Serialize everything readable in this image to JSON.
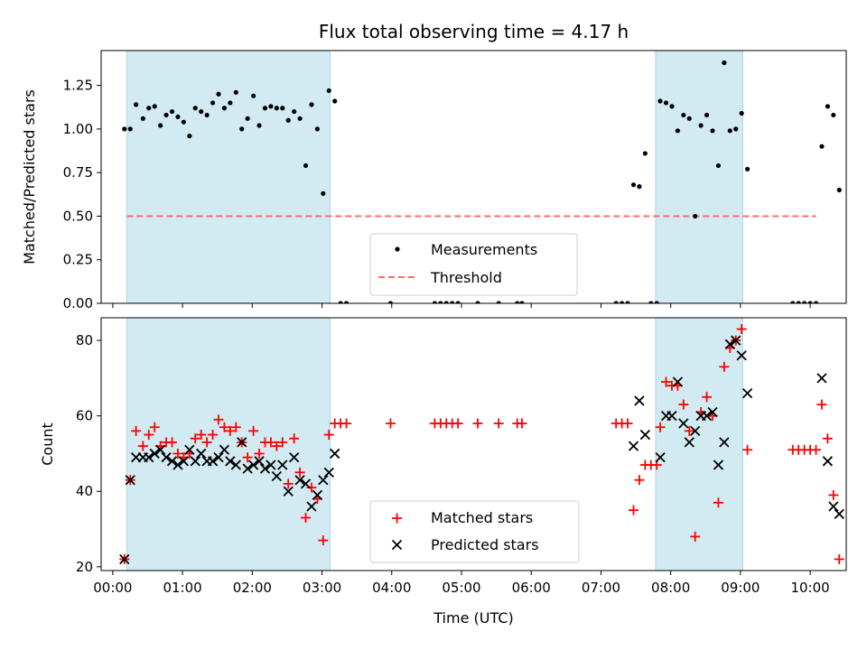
{
  "chart_data": [
    {
      "type": "scatter",
      "title": "Flux total observing time = 4.17 h",
      "ylabel": "Matched/Predicted stars",
      "xlabel": "",
      "ylim": [
        0,
        1.45
      ],
      "yticks": [
        "0.00",
        "0.25",
        "0.50",
        "0.75",
        "1.00",
        "1.25"
      ],
      "legend_position": "lower-center",
      "threshold": 0.5,
      "threshold_color": "#ff6b6b",
      "shaded_intervals": [
        [
          "00:12",
          "03:07"
        ],
        [
          "07:47",
          "09:02"
        ]
      ],
      "shade_color": "#add8e6",
      "series": [
        {
          "name": "Measurements",
          "color": "#000000",
          "marker": "dot",
          "points": [
            [
              "00:10",
              1.0
            ],
            [
              "00:15",
              1.0
            ],
            [
              "00:20",
              1.14
            ],
            [
              "00:26",
              1.06
            ],
            [
              "00:31",
              1.12
            ],
            [
              "00:36",
              1.13
            ],
            [
              "00:41",
              1.02
            ],
            [
              "00:46",
              1.08
            ],
            [
              "00:51",
              1.1
            ],
            [
              "00:56",
              1.07
            ],
            [
              "01:01",
              1.04
            ],
            [
              "01:06",
              0.96
            ],
            [
              "01:11",
              1.12
            ],
            [
              "01:16",
              1.1
            ],
            [
              "01:21",
              1.08
            ],
            [
              "01:26",
              1.15
            ],
            [
              "01:31",
              1.2
            ],
            [
              "01:36",
              1.12
            ],
            [
              "01:41",
              1.15
            ],
            [
              "01:46",
              1.21
            ],
            [
              "01:51",
              1.0
            ],
            [
              "01:56",
              1.06
            ],
            [
              "02:01",
              1.19
            ],
            [
              "02:06",
              1.02
            ],
            [
              "02:11",
              1.12
            ],
            [
              "02:16",
              1.13
            ],
            [
              "02:21",
              1.12
            ],
            [
              "02:26",
              1.12
            ],
            [
              "02:31",
              1.05
            ],
            [
              "02:36",
              1.1
            ],
            [
              "02:41",
              1.06
            ],
            [
              "02:46",
              0.79
            ],
            [
              "02:51",
              1.14
            ],
            [
              "02:56",
              1.0
            ],
            [
              "03:01",
              0.63
            ],
            [
              "03:06",
              1.22
            ],
            [
              "03:11",
              1.16
            ],
            [
              "03:16",
              0.0
            ],
            [
              "03:21",
              0.0
            ],
            [
              "03:59",
              0.0
            ],
            [
              "04:37",
              0.0
            ],
            [
              "04:42",
              0.0
            ],
            [
              "04:47",
              0.0
            ],
            [
              "04:52",
              0.0
            ],
            [
              "04:57",
              0.0
            ],
            [
              "05:14",
              0.0
            ],
            [
              "05:32",
              0.0
            ],
            [
              "05:48",
              0.0
            ],
            [
              "05:52",
              0.0
            ],
            [
              "07:13",
              0.0
            ],
            [
              "07:18",
              0.0
            ],
            [
              "07:23",
              0.0
            ],
            [
              "07:28",
              0.68
            ],
            [
              "07:33",
              0.67
            ],
            [
              "07:38",
              0.86
            ],
            [
              "07:43",
              0.0
            ],
            [
              "07:48",
              0.0
            ],
            [
              "07:51",
              1.16
            ],
            [
              "07:56",
              1.15
            ],
            [
              "08:01",
              1.13
            ],
            [
              "08:06",
              0.99
            ],
            [
              "08:11",
              1.08
            ],
            [
              "08:16",
              1.06
            ],
            [
              "08:21",
              0.5
            ],
            [
              "08:26",
              1.02
            ],
            [
              "08:31",
              1.08
            ],
            [
              "08:36",
              0.99
            ],
            [
              "08:41",
              0.79
            ],
            [
              "08:46",
              1.38
            ],
            [
              "08:51",
              0.99
            ],
            [
              "08:56",
              1.0
            ],
            [
              "09:01",
              1.09
            ],
            [
              "09:06",
              0.77
            ],
            [
              "09:45",
              0.0
            ],
            [
              "09:50",
              0.0
            ],
            [
              "09:55",
              0.0
            ],
            [
              "10:00",
              0.0
            ],
            [
              "10:05",
              0.0
            ],
            [
              "10:10",
              0.9
            ],
            [
              "10:15",
              1.13
            ],
            [
              "10:20",
              1.08
            ],
            [
              "10:25",
              0.65
            ]
          ]
        },
        {
          "name": "Threshold",
          "color": "#ff6b6b",
          "marker": "dashed-line",
          "points": [
            [
              "00:12",
              0.5
            ],
            [
              "10:05",
              0.5
            ]
          ]
        }
      ]
    },
    {
      "type": "scatter",
      "title": "",
      "xlabel": "Time (UTC)",
      "ylabel": "Count",
      "ylim": [
        19,
        86
      ],
      "yticks": [
        "20",
        "40",
        "60",
        "80"
      ],
      "xticks": [
        "00:00",
        "01:00",
        "02:00",
        "03:00",
        "04:00",
        "05:00",
        "06:00",
        "07:00",
        "08:00",
        "09:00",
        "10:00"
      ],
      "xlim": [
        "-00:10",
        "10:31"
      ],
      "legend_position": "lower-center",
      "shaded_intervals": [
        [
          "00:12",
          "03:07"
        ],
        [
          "07:47",
          "09:02"
        ]
      ],
      "shade_color": "#add8e6",
      "series": [
        {
          "name": "Matched stars",
          "color": "#ff0000",
          "marker": "plus",
          "points": [
            [
              "00:10",
              22
            ],
            [
              "00:15",
              43
            ],
            [
              "00:20",
              56
            ],
            [
              "00:26",
              52
            ],
            [
              "00:31",
              55
            ],
            [
              "00:36",
              57
            ],
            [
              "00:41",
              52
            ],
            [
              "00:46",
              53
            ],
            [
              "00:51",
              53
            ],
            [
              "00:56",
              50
            ],
            [
              "01:01",
              49
            ],
            [
              "01:06",
              50
            ],
            [
              "01:11",
              54
            ],
            [
              "01:16",
              55
            ],
            [
              "01:21",
              53
            ],
            [
              "01:26",
              55
            ],
            [
              "01:31",
              59
            ],
            [
              "01:36",
              57
            ],
            [
              "01:41",
              56
            ],
            [
              "01:46",
              57
            ],
            [
              "01:51",
              53
            ],
            [
              "01:56",
              49
            ],
            [
              "02:01",
              56
            ],
            [
              "02:06",
              50
            ],
            [
              "02:11",
              53
            ],
            [
              "02:16",
              53
            ],
            [
              "02:21",
              52
            ],
            [
              "02:26",
              53
            ],
            [
              "02:31",
              42
            ],
            [
              "02:36",
              54
            ],
            [
              "02:41",
              45
            ],
            [
              "02:46",
              33
            ],
            [
              "02:51",
              41
            ],
            [
              "02:56",
              38
            ],
            [
              "03:01",
              27
            ],
            [
              "03:06",
              55
            ],
            [
              "03:11",
              58
            ],
            [
              "03:16",
              58
            ],
            [
              "03:21",
              58
            ],
            [
              "03:59",
              58
            ],
            [
              "04:37",
              58
            ],
            [
              "04:42",
              58
            ],
            [
              "04:47",
              58
            ],
            [
              "04:52",
              58
            ],
            [
              "04:57",
              58
            ],
            [
              "05:14",
              58
            ],
            [
              "05:32",
              58
            ],
            [
              "05:48",
              58
            ],
            [
              "05:52",
              58
            ],
            [
              "07:13",
              58
            ],
            [
              "07:18",
              58
            ],
            [
              "07:23",
              58
            ],
            [
              "07:28",
              35
            ],
            [
              "07:33",
              43
            ],
            [
              "07:38",
              47
            ],
            [
              "07:43",
              47
            ],
            [
              "07:48",
              47
            ],
            [
              "07:51",
              57
            ],
            [
              "07:56",
              69
            ],
            [
              "08:01",
              68
            ],
            [
              "08:06",
              68
            ],
            [
              "08:11",
              63
            ],
            [
              "08:16",
              56
            ],
            [
              "08:21",
              28
            ],
            [
              "08:26",
              61
            ],
            [
              "08:31",
              65
            ],
            [
              "08:36",
              60
            ],
            [
              "08:41",
              37
            ],
            [
              "08:46",
              73
            ],
            [
              "08:51",
              78
            ],
            [
              "08:56",
              80
            ],
            [
              "09:01",
              83
            ],
            [
              "09:06",
              51
            ],
            [
              "09:45",
              51
            ],
            [
              "09:50",
              51
            ],
            [
              "09:55",
              51
            ],
            [
              "10:00",
              51
            ],
            [
              "10:05",
              51
            ],
            [
              "10:10",
              63
            ],
            [
              "10:15",
              54
            ],
            [
              "10:20",
              39
            ],
            [
              "10:25",
              22
            ]
          ]
        },
        {
          "name": "Predicted stars",
          "color": "#000000",
          "marker": "x",
          "points": [
            [
              "00:10",
              22
            ],
            [
              "00:15",
              43
            ],
            [
              "00:20",
              49
            ],
            [
              "00:26",
              49
            ],
            [
              "00:31",
              49
            ],
            [
              "00:36",
              50
            ],
            [
              "00:41",
              51
            ],
            [
              "00:46",
              49
            ],
            [
              "00:51",
              48
            ],
            [
              "00:56",
              47
            ],
            [
              "01:01",
              48
            ],
            [
              "01:06",
              51
            ],
            [
              "01:11",
              48
            ],
            [
              "01:16",
              50
            ],
            [
              "01:21",
              48
            ],
            [
              "01:26",
              48
            ],
            [
              "01:31",
              49
            ],
            [
              "01:36",
              51
            ],
            [
              "01:41",
              48
            ],
            [
              "01:46",
              47
            ],
            [
              "01:51",
              53
            ],
            [
              "01:56",
              46
            ],
            [
              "02:01",
              47
            ],
            [
              "02:06",
              48
            ],
            [
              "02:11",
              46
            ],
            [
              "02:16",
              47
            ],
            [
              "02:21",
              44
            ],
            [
              "02:26",
              47
            ],
            [
              "02:31",
              40
            ],
            [
              "02:36",
              49
            ],
            [
              "02:41",
              43
            ],
            [
              "02:46",
              42
            ],
            [
              "02:51",
              36
            ],
            [
              "02:56",
              39
            ],
            [
              "03:01",
              43
            ],
            [
              "03:06",
              45
            ],
            [
              "03:11",
              50
            ],
            [
              "07:28",
              52
            ],
            [
              "07:33",
              64
            ],
            [
              "07:38",
              55
            ],
            [
              "07:51",
              49
            ],
            [
              "07:56",
              60
            ],
            [
              "08:01",
              60
            ],
            [
              "08:06",
              69
            ],
            [
              "08:11",
              58
            ],
            [
              "08:16",
              53
            ],
            [
              "08:21",
              56
            ],
            [
              "08:26",
              60
            ],
            [
              "08:31",
              60
            ],
            [
              "08:36",
              61
            ],
            [
              "08:41",
              47
            ],
            [
              "08:46",
              53
            ],
            [
              "08:51",
              79
            ],
            [
              "08:56",
              80
            ],
            [
              "09:01",
              76
            ],
            [
              "09:06",
              66
            ],
            [
              "10:10",
              70
            ],
            [
              "10:15",
              48
            ],
            [
              "10:20",
              36
            ],
            [
              "10:25",
              34
            ]
          ]
        }
      ]
    }
  ]
}
